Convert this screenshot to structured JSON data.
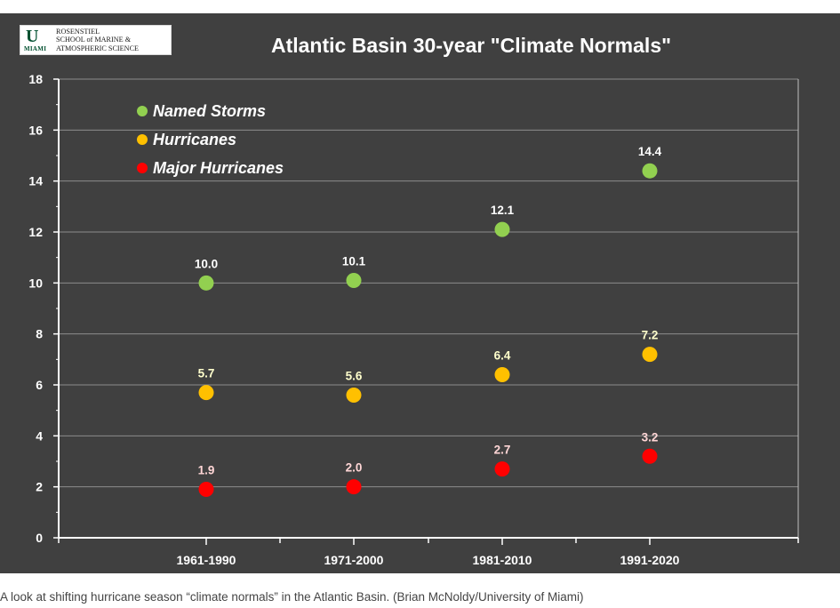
{
  "logo": {
    "u_letter": "U",
    "miami": "MIAMI",
    "text": "ROSENSTIEL\nSCHOOL of MARINE &\nATMOSPHERIC SCIENCE"
  },
  "caption": "A look at shifting hurricane season “climate normals” in the Atlantic Basin. (Brian McNoldy/University of Miami)",
  "colors": {
    "background": "#404040",
    "named_storms": "#92d050",
    "hurricanes": "#ffc000",
    "major_hurricanes": "#ff0000",
    "text": "#ffffff"
  },
  "chart_data": {
    "type": "scatter",
    "title": "Atlantic Basin 30-year \"Climate Normals\"",
    "xlabel": "",
    "ylabel": "",
    "categories": [
      "1961-1990",
      "1971-2000",
      "1981-2010",
      "1991-2020"
    ],
    "ylim": [
      0,
      18
    ],
    "yticks": [
      0,
      2,
      4,
      6,
      8,
      10,
      12,
      14,
      16,
      18
    ],
    "grid": true,
    "legend_position": "top-left",
    "series": [
      {
        "name": "Named Storms",
        "color": "#92d050",
        "label_color": "#ffffff",
        "values": [
          10.0,
          10.1,
          12.1,
          14.4
        ],
        "labels": [
          "10.0",
          "10.1",
          "12.1",
          "14.4"
        ]
      },
      {
        "name": "Hurricanes",
        "color": "#ffc000",
        "label_color": "#ffffcc",
        "values": [
          5.7,
          5.6,
          6.4,
          7.2
        ],
        "labels": [
          "5.7",
          "5.6",
          "6.4",
          "7.2"
        ]
      },
      {
        "name": "Major Hurricanes",
        "color": "#ff0000",
        "label_color": "#ffd6d6",
        "values": [
          1.9,
          2.0,
          2.7,
          3.2
        ],
        "labels": [
          "1.9",
          "2.0",
          "2.7",
          "3.2"
        ]
      }
    ]
  }
}
